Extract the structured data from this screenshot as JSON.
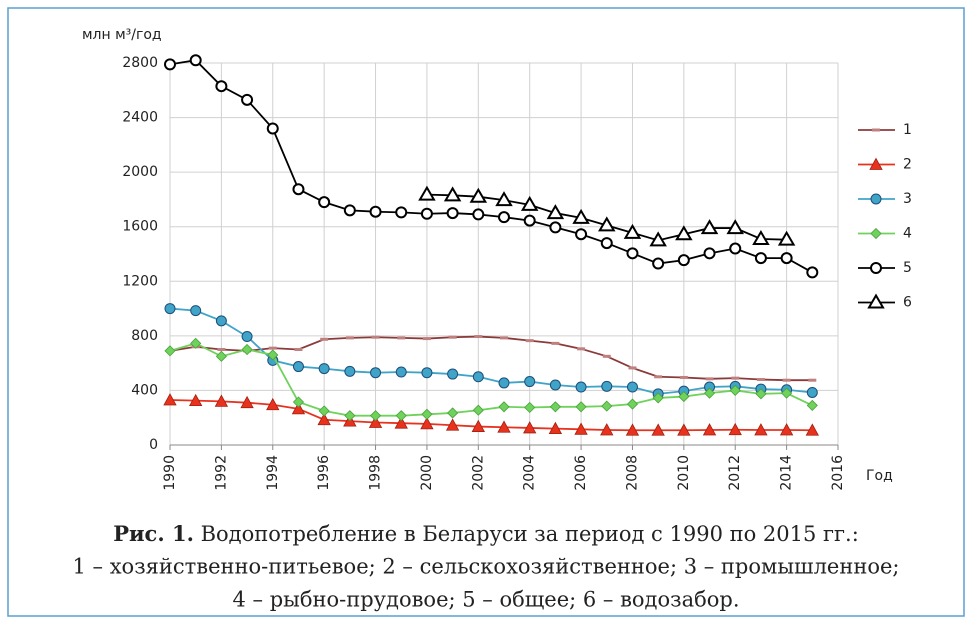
{
  "chart_data": {
    "type": "line",
    "y_label": "млн м³/год",
    "x_label": "Год",
    "x": [
      1990,
      1991,
      1992,
      1993,
      1994,
      1995,
      1996,
      1997,
      1998,
      1999,
      2000,
      2001,
      2002,
      2003,
      2004,
      2005,
      2006,
      2007,
      2008,
      2009,
      2010,
      2011,
      2012,
      2013,
      2014,
      2015
    ],
    "xlim": [
      1990,
      2016
    ],
    "xticks": [
      1990,
      1992,
      1994,
      1996,
      1998,
      2000,
      2002,
      2004,
      2006,
      2008,
      2010,
      2012,
      2014,
      2016
    ],
    "ylim": [
      0,
      2800
    ],
    "yticks": [
      0,
      400,
      800,
      1200,
      1600,
      2000,
      2400,
      2800
    ],
    "grid": true,
    "legend": "right",
    "series": [
      {
        "name": "1",
        "color": "#8b3a3a",
        "marker": "dash",
        "values": [
          690,
          720,
          700,
          690,
          710,
          700,
          775,
          785,
          790,
          785,
          780,
          790,
          795,
          785,
          765,
          745,
          705,
          650,
          565,
          500,
          495,
          485,
          490,
          480,
          475,
          475
        ]
      },
      {
        "name": "2",
        "color": "#e8321e",
        "marker": "triangle",
        "values": [
          330,
          325,
          320,
          310,
          295,
          265,
          185,
          175,
          165,
          160,
          155,
          145,
          135,
          130,
          125,
          120,
          115,
          110,
          108,
          108,
          108,
          110,
          112,
          110,
          110,
          108
        ]
      },
      {
        "name": "3",
        "color": "#3fa4c8",
        "marker": "circle",
        "values": [
          1000,
          985,
          910,
          795,
          620,
          575,
          560,
          540,
          530,
          535,
          530,
          520,
          500,
          455,
          465,
          440,
          425,
          430,
          425,
          375,
          395,
          425,
          430,
          410,
          405,
          385
        ]
      },
      {
        "name": "4",
        "color": "#6fd25c",
        "marker": "diamond",
        "values": [
          690,
          745,
          650,
          700,
          660,
          315,
          250,
          215,
          215,
          215,
          225,
          235,
          255,
          280,
          275,
          280,
          280,
          285,
          300,
          345,
          355,
          380,
          400,
          375,
          380,
          290
        ]
      },
      {
        "name": "5",
        "color": "#000000",
        "marker": "open-circle",
        "values": [
          2790,
          2820,
          2630,
          2530,
          2320,
          1875,
          1780,
          1720,
          1710,
          1705,
          1695,
          1700,
          1690,
          1670,
          1645,
          1595,
          1545,
          1480,
          1405,
          1330,
          1355,
          1405,
          1440,
          1370,
          1370,
          1265
        ]
      },
      {
        "name": "6",
        "color": "#000000",
        "marker": "open-triangle",
        "values": [
          null,
          null,
          null,
          null,
          null,
          null,
          null,
          null,
          null,
          null,
          1835,
          1830,
          1820,
          1795,
          1760,
          1700,
          1665,
          1610,
          1555,
          1500,
          1545,
          1590,
          1590,
          1510,
          1505,
          null
        ]
      }
    ]
  },
  "caption": {
    "label": "Рис. 1.",
    "line1": " Водопотребление в Беларуси за период с 1990 по 2015 гг.:",
    "line2": "1 – хозяйственно-питьевое; 2 – сельскохозяйственное; 3 – промышленное;",
    "line3": "4 – рыбно-прудовое; 5 – общее; 6 – водозабор."
  }
}
